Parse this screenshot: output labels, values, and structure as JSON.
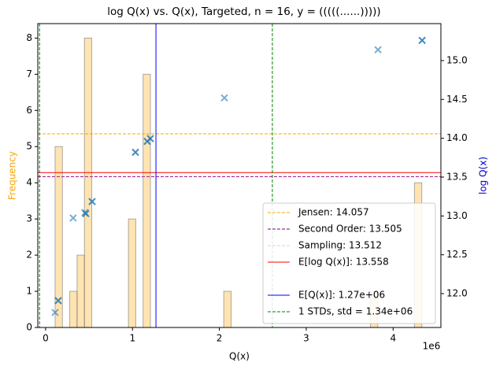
{
  "chart_data": {
    "type": "histogram",
    "title": "log Q(x) vs. Q(x), Targeted, n = 16, y = (((((......)))))",
    "xlabel": "Q(x)",
    "ylabel": "Frequency",
    "y2label": "log Q(x)",
    "x_offset_label": "1e6",
    "bins": [
      109000,
      193420,
      277840,
      362260,
      446680,
      531100,
      615520,
      699940,
      784360,
      868780,
      953200,
      1037620,
      1122040,
      1206460,
      1290880,
      1375300,
      1459720,
      1544140,
      1628560,
      1712980,
      1797400,
      1881820,
      1966240,
      2050660,
      2135080,
      2219500,
      2303920,
      2388340,
      2472760,
      2557180,
      2641600,
      2726020,
      2810440,
      2894860,
      2979280,
      3063700,
      3148120,
      3232540,
      3316960,
      3401380,
      3485800,
      3570220,
      3654640,
      3739060,
      3823480,
      3907900,
      3992320,
      4076740,
      4161160,
      4245580,
      4330000
    ],
    "counts": [
      5,
      0,
      1,
      2,
      8,
      0,
      0,
      0,
      0,
      0,
      3,
      0,
      7,
      0,
      0,
      0,
      0,
      0,
      0,
      0,
      0,
      0,
      0,
      1,
      0,
      0,
      0,
      0,
      0,
      0,
      0,
      0,
      0,
      0,
      0,
      0,
      0,
      0,
      0,
      0,
      0,
      0,
      0,
      1,
      0,
      0,
      0,
      0,
      0,
      4
    ],
    "bar_color": "#ffa500",
    "scatter": {
      "axis": "y2",
      "color": "#1f77b4",
      "x": [
        109000,
        145000,
        145000,
        317000,
        453000,
        462000,
        462000,
        535000,
        535000,
        1034000,
        1034000,
        1170000,
        1170000,
        1206000,
        1206000,
        2058000,
        3826000,
        4334000,
        4334000
      ],
      "values": [
        11.757,
        11.91,
        11.91,
        12.973,
        13.044,
        13.03,
        13.03,
        13.185,
        13.185,
        13.82,
        13.82,
        13.96,
        13.96,
        13.996,
        13.996,
        14.52,
        15.14,
        15.26,
        15.26
      ]
    },
    "lines": [
      {
        "label": "Jensen: 14.057",
        "value": 14.057,
        "axis": "y2",
        "color": "#ffa500",
        "dash": true
      },
      {
        "label": "Second Order: 13.505",
        "value": 13.505,
        "axis": "y2",
        "color": "#800080",
        "dash": true
      },
      {
        "label": "Sampling: 13.512",
        "value": 13.512,
        "axis": "y2",
        "color": "#ffc0cb",
        "dash": true
      },
      {
        "label": "E[log Q(x)]: 13.558",
        "value": 13.558,
        "axis": "y2",
        "color": "#ff0000",
        "dash": false
      },
      {
        "label": "E[Q(x)]: 1.27e+06",
        "value": 1270000,
        "axis": "x",
        "color": "#0000ff",
        "dash": false
      },
      {
        "label": "1 STDs, std = 1.34e+06",
        "value": 1340000,
        "axis": "x-std",
        "color": "#008000",
        "dash": true
      }
    ],
    "xlim": [
      -90000,
      4550000
    ],
    "xticks": [
      0,
      {
        "value": 1000000,
        "label": "1"
      },
      {
        "value": 2000000,
        "label": "2"
      },
      {
        "value": 3000000,
        "label": "3"
      },
      {
        "value": 4000000,
        "label": "4"
      }
    ],
    "ylim": [
      0,
      8.4
    ],
    "yticks": [
      0,
      1,
      2,
      3,
      4,
      5,
      6,
      7,
      8
    ],
    "y2lim": [
      11.564,
      15.476
    ],
    "y2ticks": [
      {
        "value": 12,
        "label": "12.0"
      },
      12.5,
      {
        "value": 13,
        "label": "13.0"
      },
      13.5,
      {
        "value": 14,
        "label": "14.0"
      },
      14.5,
      {
        "value": 15,
        "label": "15.0"
      }
    ],
    "legend": "lower right"
  }
}
